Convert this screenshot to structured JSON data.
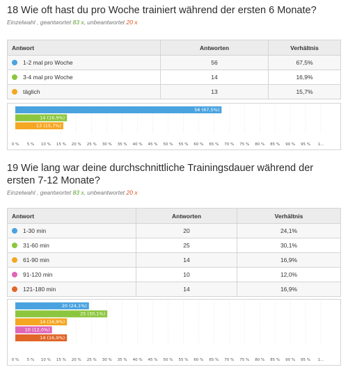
{
  "questions": [
    {
      "title": "18 Wie oft hast du pro Woche trainiert während der ersten 6 Monate?",
      "meta_prefix": "Einzelwahl , geantwortet ",
      "answered": "83 x",
      "meta_mid": ", unbeantwortet ",
      "unanswered": "20 x",
      "headers": [
        "Antwort",
        "Antworten",
        "Verhältnis"
      ],
      "rows": [
        {
          "label": "1-2 mal pro Woche",
          "count": "56",
          "ratio": "67,5%",
          "color": "#4aa3df"
        },
        {
          "label": "3-4 mal pro Woche",
          "count": "14",
          "ratio": "16,9%",
          "color": "#8cc63f"
        },
        {
          "label": "täglich",
          "count": "13",
          "ratio": "15,7%",
          "color": "#f5a623"
        }
      ]
    },
    {
      "title": "19 Wie lang war deine durchschnittliche Trainingsdauer während der ersten 7-12 Monate?",
      "meta_prefix": "Einzelwahl , geantwortet ",
      "answered": "83 x",
      "meta_mid": ", unbeantwortet ",
      "unanswered": "20 x",
      "headers": [
        "Antwort",
        "Antworten",
        "Verhältnis"
      ],
      "rows": [
        {
          "label": "1-30 min",
          "count": "20",
          "ratio": "24,1%",
          "color": "#4aa3df"
        },
        {
          "label": "31-60 min",
          "count": "25",
          "ratio": "30,1%",
          "color": "#8cc63f"
        },
        {
          "label": "61-90 min",
          "count": "14",
          "ratio": "16,9%",
          "color": "#f5a623"
        },
        {
          "label": "91-120 min",
          "count": "10",
          "ratio": "12,0%",
          "color": "#e066b8"
        },
        {
          "label": "121-180 min",
          "count": "14",
          "ratio": "16,9%",
          "color": "#e0662a"
        }
      ]
    }
  ],
  "chart_data": [
    {
      "type": "bar",
      "orientation": "horizontal",
      "categories": [
        "1-2 mal pro Woche",
        "3-4 mal pro Woche",
        "täglich"
      ],
      "values": [
        67.5,
        16.9,
        15.7
      ],
      "labels": [
        "56 (67,5%)",
        "14 (16,9%)",
        "13 (15,7%)"
      ],
      "colors": [
        "#4aa3df",
        "#8cc63f",
        "#f5a623"
      ],
      "xlim": [
        0,
        100
      ],
      "ticks": [
        "0 %",
        "5 %",
        "10 %",
        "15 %",
        "20 %",
        "25 %",
        "30 %",
        "35 %",
        "40 %",
        "45 %",
        "50 %",
        "55 %",
        "60 %",
        "65 %",
        "70 %",
        "75 %",
        "80 %",
        "85 %",
        "90 %",
        "95 %",
        "1..."
      ],
      "grid": true
    },
    {
      "type": "bar",
      "orientation": "horizontal",
      "categories": [
        "1-30 min",
        "31-60 min",
        "61-90 min",
        "91-120 min",
        "121-180 min"
      ],
      "values": [
        24.1,
        30.1,
        16.9,
        12.0,
        16.9
      ],
      "labels": [
        "20 (24,1%)",
        "25 (30,1%)",
        "14 (16,9%)",
        "10 (12,0%)",
        "14 (16,9%)"
      ],
      "colors": [
        "#4aa3df",
        "#8cc63f",
        "#f5a623",
        "#e066b8",
        "#e0662a"
      ],
      "xlim": [
        0,
        100
      ],
      "ticks": [
        "0 %",
        "5 %",
        "10 %",
        "15 %",
        "20 %",
        "25 %",
        "30 %",
        "35 %",
        "40 %",
        "45 %",
        "50 %",
        "55 %",
        "60 %",
        "65 %",
        "70 %",
        "75 %",
        "80 %",
        "85 %",
        "90 %",
        "95 %",
        "1..."
      ],
      "grid": true
    }
  ]
}
